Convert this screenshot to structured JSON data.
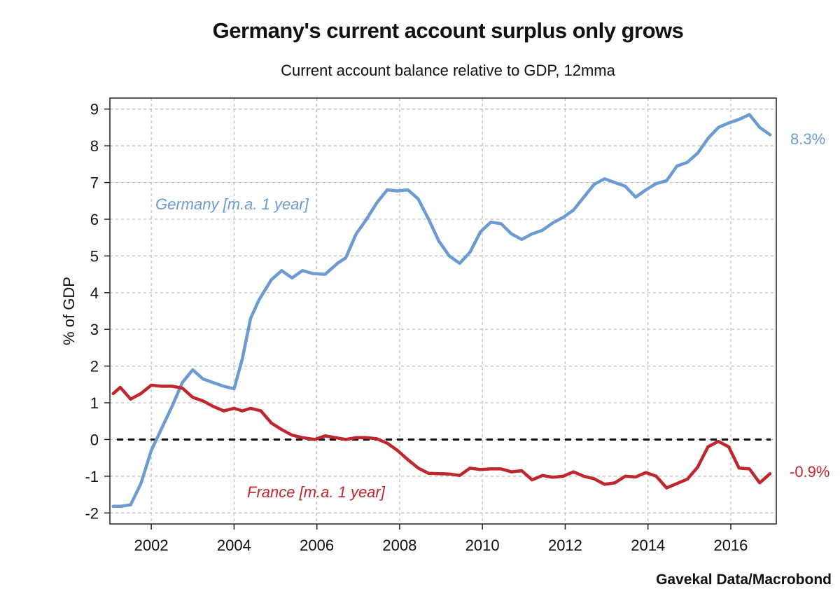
{
  "chart_data": {
    "type": "line",
    "title": "Germany's current account surplus only grows",
    "subtitle": "Current account balance relative to GDP, 12mma",
    "ylabel": "% of GDP",
    "xlabel": "",
    "xlim": [
      2001.0,
      2017.1
    ],
    "ylim": [
      -2.3,
      9.3
    ],
    "yticks": [
      -2,
      -1,
      0,
      1,
      2,
      3,
      4,
      5,
      6,
      7,
      8,
      9
    ],
    "xticks": [
      2002,
      2004,
      2006,
      2008,
      2010,
      2012,
      2014,
      2016
    ],
    "grid": true,
    "zero_line": 0,
    "source": "Gavekal Data/Macrobond",
    "series": [
      {
        "name": "Germany",
        "label": "Germany [m.a. 1 year]",
        "end_label": "8.3%",
        "color": "#6b9bd1",
        "points": [
          [
            2001.08,
            -1.82
          ],
          [
            2001.25,
            -1.82
          ],
          [
            2001.5,
            -1.78
          ],
          [
            2001.75,
            -1.2
          ],
          [
            2002.0,
            -0.3
          ],
          [
            2002.25,
            0.3
          ],
          [
            2002.5,
            0.9
          ],
          [
            2002.75,
            1.55
          ],
          [
            2003.0,
            1.9
          ],
          [
            2003.25,
            1.65
          ],
          [
            2003.5,
            1.55
          ],
          [
            2003.75,
            1.45
          ],
          [
            2004.0,
            1.38
          ],
          [
            2004.2,
            2.2
          ],
          [
            2004.4,
            3.3
          ],
          [
            2004.6,
            3.8
          ],
          [
            2004.9,
            4.35
          ],
          [
            2005.15,
            4.6
          ],
          [
            2005.4,
            4.4
          ],
          [
            2005.65,
            4.6
          ],
          [
            2005.9,
            4.52
          ],
          [
            2006.2,
            4.5
          ],
          [
            2006.5,
            4.8
          ],
          [
            2006.7,
            4.95
          ],
          [
            2006.95,
            5.6
          ],
          [
            2007.2,
            6.0
          ],
          [
            2007.45,
            6.45
          ],
          [
            2007.7,
            6.8
          ],
          [
            2007.95,
            6.77
          ],
          [
            2008.2,
            6.8
          ],
          [
            2008.45,
            6.55
          ],
          [
            2008.7,
            6.0
          ],
          [
            2008.95,
            5.4
          ],
          [
            2009.2,
            5.0
          ],
          [
            2009.45,
            4.8
          ],
          [
            2009.7,
            5.1
          ],
          [
            2009.95,
            5.65
          ],
          [
            2010.2,
            5.92
          ],
          [
            2010.45,
            5.88
          ],
          [
            2010.7,
            5.6
          ],
          [
            2010.95,
            5.45
          ],
          [
            2011.2,
            5.6
          ],
          [
            2011.45,
            5.7
          ],
          [
            2011.7,
            5.9
          ],
          [
            2011.95,
            6.05
          ],
          [
            2012.2,
            6.25
          ],
          [
            2012.45,
            6.6
          ],
          [
            2012.7,
            6.95
          ],
          [
            2012.95,
            7.1
          ],
          [
            2013.2,
            7.0
          ],
          [
            2013.45,
            6.9
          ],
          [
            2013.7,
            6.6
          ],
          [
            2013.95,
            6.8
          ],
          [
            2014.2,
            6.97
          ],
          [
            2014.45,
            7.05
          ],
          [
            2014.7,
            7.45
          ],
          [
            2014.95,
            7.55
          ],
          [
            2015.2,
            7.8
          ],
          [
            2015.45,
            8.2
          ],
          [
            2015.7,
            8.5
          ],
          [
            2015.95,
            8.62
          ],
          [
            2016.2,
            8.72
          ],
          [
            2016.45,
            8.85
          ],
          [
            2016.7,
            8.5
          ],
          [
            2016.95,
            8.3
          ]
        ]
      },
      {
        "name": "France",
        "label": "France [m.a. 1 year]",
        "end_label": "-0.9%",
        "color": "#c0262e",
        "points": [
          [
            2001.08,
            1.25
          ],
          [
            2001.25,
            1.42
          ],
          [
            2001.5,
            1.1
          ],
          [
            2001.75,
            1.25
          ],
          [
            2002.0,
            1.48
          ],
          [
            2002.25,
            1.45
          ],
          [
            2002.5,
            1.45
          ],
          [
            2002.75,
            1.4
          ],
          [
            2003.0,
            1.15
          ],
          [
            2003.25,
            1.05
          ],
          [
            2003.5,
            0.9
          ],
          [
            2003.75,
            0.78
          ],
          [
            2004.0,
            0.85
          ],
          [
            2004.2,
            0.78
          ],
          [
            2004.4,
            0.85
          ],
          [
            2004.65,
            0.78
          ],
          [
            2004.9,
            0.45
          ],
          [
            2005.15,
            0.27
          ],
          [
            2005.4,
            0.12
          ],
          [
            2005.65,
            0.05
          ],
          [
            2005.95,
            0.0
          ],
          [
            2006.2,
            0.1
          ],
          [
            2006.45,
            0.05
          ],
          [
            2006.7,
            0.0
          ],
          [
            2006.95,
            0.05
          ],
          [
            2007.2,
            0.05
          ],
          [
            2007.45,
            0.02
          ],
          [
            2007.7,
            -0.1
          ],
          [
            2007.95,
            -0.3
          ],
          [
            2008.2,
            -0.55
          ],
          [
            2008.45,
            -0.78
          ],
          [
            2008.7,
            -0.92
          ],
          [
            2008.95,
            -0.93
          ],
          [
            2009.2,
            -0.94
          ],
          [
            2009.45,
            -0.98
          ],
          [
            2009.7,
            -0.78
          ],
          [
            2009.95,
            -0.82
          ],
          [
            2010.2,
            -0.8
          ],
          [
            2010.45,
            -0.8
          ],
          [
            2010.7,
            -0.88
          ],
          [
            2010.95,
            -0.85
          ],
          [
            2011.2,
            -1.1
          ],
          [
            2011.45,
            -0.98
          ],
          [
            2011.7,
            -1.03
          ],
          [
            2011.95,
            -1.0
          ],
          [
            2012.2,
            -0.88
          ],
          [
            2012.45,
            -1.0
          ],
          [
            2012.7,
            -1.07
          ],
          [
            2012.95,
            -1.22
          ],
          [
            2013.2,
            -1.18
          ],
          [
            2013.45,
            -1.0
          ],
          [
            2013.7,
            -1.02
          ],
          [
            2013.95,
            -0.9
          ],
          [
            2014.2,
            -1.0
          ],
          [
            2014.45,
            -1.32
          ],
          [
            2014.7,
            -1.2
          ],
          [
            2014.95,
            -1.08
          ],
          [
            2015.2,
            -0.75
          ],
          [
            2015.45,
            -0.2
          ],
          [
            2015.7,
            -0.05
          ],
          [
            2015.95,
            -0.2
          ],
          [
            2016.2,
            -0.78
          ],
          [
            2016.45,
            -0.8
          ],
          [
            2016.7,
            -1.18
          ],
          [
            2016.95,
            -0.93
          ]
        ]
      }
    ]
  }
}
